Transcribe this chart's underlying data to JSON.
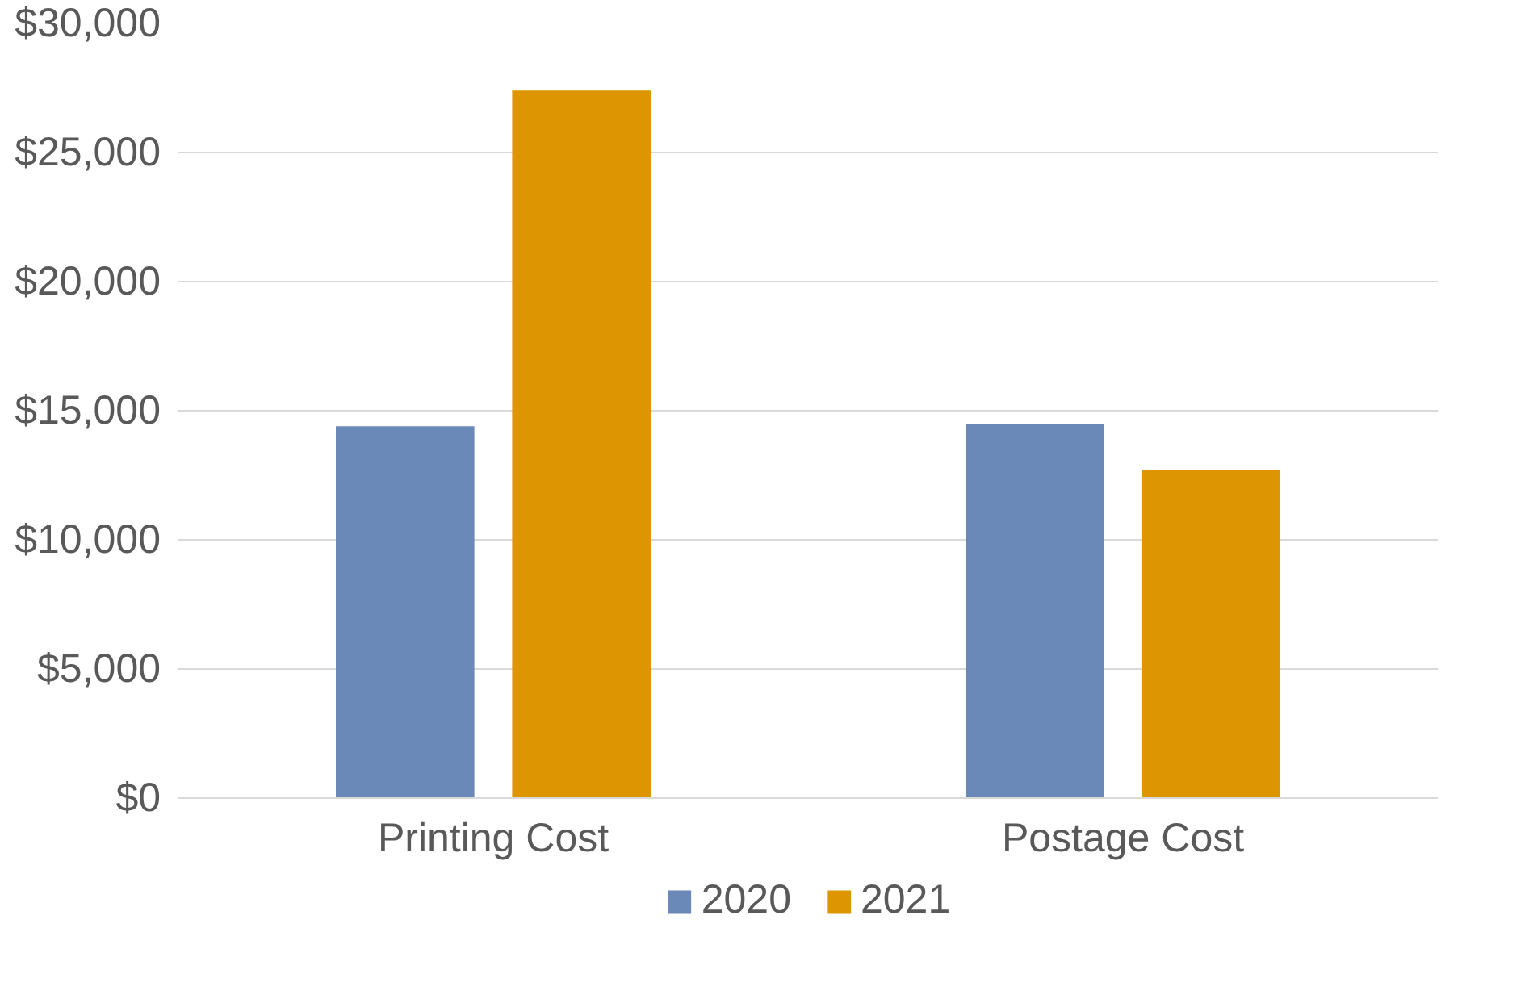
{
  "chart_data": {
    "type": "bar",
    "categories": [
      "Printing Cost",
      "Postage Cost"
    ],
    "series": [
      {
        "name": "2020",
        "color": "#6a88b8",
        "values": [
          14400,
          14500
        ]
      },
      {
        "name": "2021",
        "color": "#dd9602",
        "values": [
          27400,
          12700
        ]
      }
    ],
    "ylim": [
      0,
      30000
    ],
    "yticks": [
      {
        "value": 0,
        "label": "$0"
      },
      {
        "value": 5000,
        "label": "$5,000"
      },
      {
        "value": 10000,
        "label": "$10,000"
      },
      {
        "value": 15000,
        "label": "$15,000"
      },
      {
        "value": 20000,
        "label": "$20,000"
      },
      {
        "value": 25000,
        "label": "$25,000"
      },
      {
        "value": 30000,
        "label": "$30,000"
      }
    ],
    "grid": "y",
    "legend": "bottom"
  }
}
